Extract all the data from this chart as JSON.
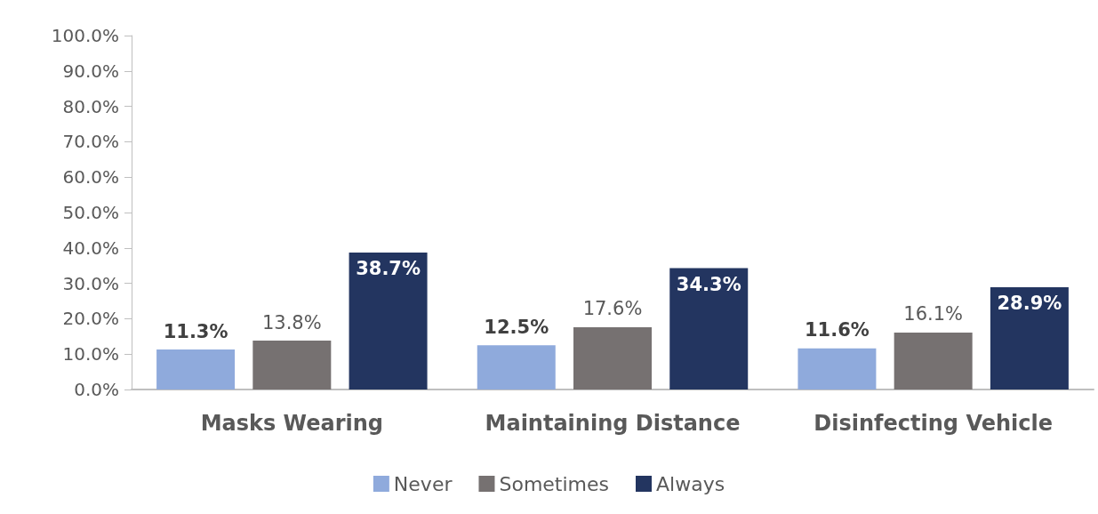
{
  "chart_data": {
    "type": "bar",
    "categories": [
      "Masks Wearing",
      "Maintaining Distance",
      "Disinfecting Vehicle"
    ],
    "series": [
      {
        "name": "Never",
        "color": "#8faadc",
        "values": [
          11.3,
          12.5,
          11.6
        ],
        "value_labels": [
          "11.3%",
          "12.5%",
          "11.6%"
        ]
      },
      {
        "name": "Sometimes",
        "color": "#767171",
        "values": [
          13.8,
          17.6,
          16.1
        ],
        "value_labels": [
          "13.8%",
          "17.6%",
          "16.1%"
        ]
      },
      {
        "name": "Always",
        "color": "#233560",
        "values": [
          38.7,
          34.3,
          28.9
        ],
        "value_labels": [
          "38.7%",
          "34.3%",
          "28.9%"
        ]
      }
    ],
    "ylim": [
      0,
      100
    ],
    "yticks": [
      {
        "value": 0,
        "label": "0.0%"
      },
      {
        "value": 10,
        "label": "10.0%"
      },
      {
        "value": 20,
        "label": "20.0%"
      },
      {
        "value": 30,
        "label": "30.0%"
      },
      {
        "value": 40,
        "label": "40.0%"
      },
      {
        "value": 50,
        "label": "50.0%"
      },
      {
        "value": 60,
        "label": "60.0%"
      },
      {
        "value": 70,
        "label": "70.0%"
      },
      {
        "value": 80,
        "label": "80.0%"
      },
      {
        "value": 90,
        "label": "90.0%"
      },
      {
        "value": 100,
        "label": "100.0%"
      }
    ],
    "grid": false,
    "legend": "bottom"
  }
}
